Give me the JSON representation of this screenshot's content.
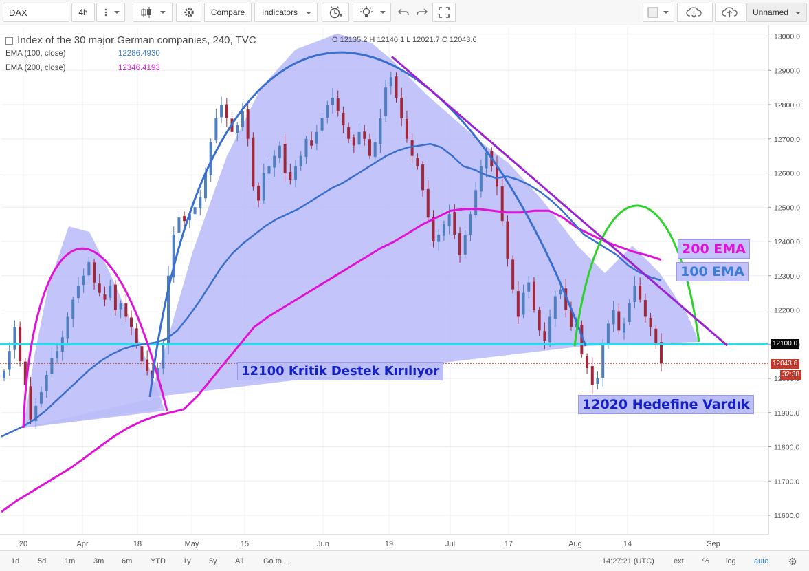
{
  "toolbar": {
    "symbol": "DAX",
    "interval": "4h",
    "compare_label": "Compare",
    "indicators_label": "Indicators",
    "layout_name": "Unnamed"
  },
  "legend": {
    "title": "Index of the 30 major German companies, 240, TVC",
    "ohlc": "O 12135.2  H 12140.1  L 12021.7  C 12043.6",
    "ema100_label": "EMA (100, close)",
    "ema100_value": "12286.4930",
    "ema200_label": "EMA (200, close)",
    "ema200_value": "12346.4193"
  },
  "annotations": {
    "ema200": "200 EMA",
    "ema100": "100 EMA",
    "support": "12100 Kritik Destek Kırılıyor",
    "target": "12020 Hedefine Vardık"
  },
  "price_tags": {
    "support": "12100.0",
    "last": "12043.6",
    "countdown": "32:38"
  },
  "bottom": {
    "ranges": [
      "1d",
      "5d",
      "1m",
      "3m",
      "6m",
      "YTD",
      "1y",
      "5y",
      "All"
    ],
    "goto": "Go to...",
    "time": "14:27:21 (UTC)",
    "ext": "ext",
    "pct": "%",
    "log": "log",
    "auto": "auto"
  },
  "colors": {
    "up": "#4f7fbf",
    "down": "#a0283c",
    "ema100": "#3a6fd0",
    "ema200": "#e012d8",
    "support_line": "#19e1f0",
    "trend_line": "#9b22d1",
    "shade": "#b8baf8",
    "annotation_box": "#bcbef7",
    "annotation_text": "#1420c8",
    "pink_text": "#e012d8",
    "blue_text": "#3a7ed6",
    "last_price_tag": "#c0392b"
  },
  "chart_data": {
    "type": "candlestick",
    "y_axis_ticks": [
      11600,
      11700,
      11800,
      11900,
      12000,
      12100,
      12200,
      12300,
      12400,
      12500,
      12600,
      12700,
      12800,
      12900,
      13000
    ],
    "ylim": [
      11540,
      13030
    ],
    "x_axis_ticks": [
      "20",
      "Apr",
      "18",
      "May",
      "15",
      "Jun",
      "19",
      "Jul",
      "17",
      "Aug",
      "14",
      "Sep"
    ],
    "support_level": 12100,
    "last_price": 12043.6,
    "ohlc_last": {
      "open": 12135.2,
      "high": 12140.1,
      "low": 12021.7,
      "close": 12043.6
    },
    "ema100_last": 12286.493,
    "ema200_last": 12346.4193,
    "close_series": [
      12020,
      12080,
      12150,
      12050,
      11980,
      11880,
      11920,
      11960,
      12010,
      12060,
      12080,
      12120,
      12180,
      12230,
      12270,
      12300,
      12340,
      12280,
      12250,
      12230,
      12270,
      12200,
      12220,
      12180,
      12150,
      12100,
      12050,
      12020,
      12000,
      12030,
      12100,
      12300,
      12420,
      12470,
      12460,
      12480,
      12500,
      12530,
      12600,
      12690,
      12760,
      12800,
      12760,
      12720,
      12740,
      12780,
      12700,
      12560,
      12520,
      12600,
      12620,
      12650,
      12680,
      12600,
      12580,
      12620,
      12650,
      12700,
      12680,
      12720,
      12760,
      12800,
      12820,
      12780,
      12740,
      12700,
      12680,
      12720,
      12700,
      12650,
      12690,
      12760,
      12850,
      12880,
      12820,
      12760,
      12700,
      12650,
      12620,
      12550,
      12470,
      12400,
      12420,
      12450,
      12480,
      12420,
      12360,
      12420,
      12480,
      12550,
      12620,
      12660,
      12620,
      12560,
      12460,
      12350,
      12260,
      12180,
      12250,
      12280,
      12200,
      12140,
      12110,
      12180,
      12240,
      12260,
      12200,
      12150,
      12160,
      12070,
      12030,
      11980,
      12000,
      12100,
      12160,
      12200,
      12140,
      12160,
      12220,
      12270,
      12230,
      12180,
      12150,
      12100,
      12043.6
    ],
    "ema100_series": [
      11830,
      11845,
      11860,
      11880,
      11905,
      11935,
      11965,
      11995,
      12025,
      12050,
      12070,
      12085,
      12095,
      12100,
      12105,
      12115,
      12140,
      12180,
      12225,
      12275,
      12325,
      12365,
      12395,
      12420,
      12445,
      12465,
      12480,
      12495,
      12515,
      12535,
      12555,
      12570,
      12590,
      12610,
      12630,
      12650,
      12665,
      12675,
      12680,
      12685,
      12675,
      12650,
      12620,
      12610,
      12595,
      12585,
      12590,
      12580,
      12565,
      12545,
      12520,
      12490,
      12455,
      12420,
      12400,
      12380,
      12360,
      12330,
      12310,
      12296,
      12286.493
    ],
    "ema200_series": [
      11610,
      11640,
      11665,
      11690,
      11715,
      11740,
      11770,
      11800,
      11830,
      11855,
      11875,
      11890,
      11900,
      11910,
      11950,
      12000,
      12050,
      12100,
      12150,
      12180,
      12205,
      12230,
      12255,
      12280,
      12305,
      12330,
      12355,
      12380,
      12400,
      12425,
      12450,
      12470,
      12490,
      12495,
      12495,
      12490,
      12485,
      12485,
      12490,
      12490,
      12470,
      12440,
      12420,
      12400,
      12385,
      12370,
      12360,
      12346.4193
    ],
    "shapes": [
      {
        "kind": "arc",
        "color": "magenta",
        "from_label": "20",
        "peak": 12440,
        "to_label": "18"
      },
      {
        "kind": "arc",
        "color": "blue",
        "from_label": "18",
        "peak": 13000,
        "to_label": "Aug"
      },
      {
        "kind": "arc",
        "color": "green",
        "from_label": "Aug",
        "peak": 12460,
        "to_label": "Sep"
      },
      {
        "kind": "trendline",
        "color": "purple",
        "from_price": 12940,
        "to_price": 12110
      },
      {
        "kind": "hline",
        "price": 12100
      }
    ]
  }
}
